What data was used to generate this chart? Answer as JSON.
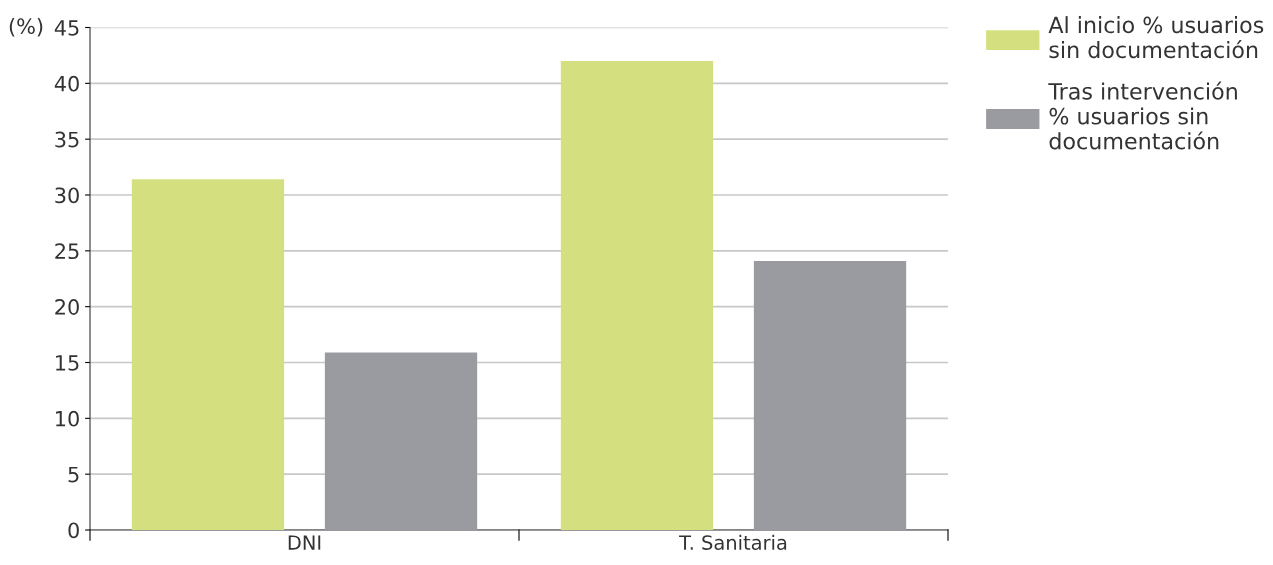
{
  "chart_data": {
    "type": "bar",
    "ylabel": "(%)",
    "categories": [
      "DNI",
      "T. Sanitaria"
    ],
    "series": [
      {
        "name": "Al inicio % usuarios\nsin documentación",
        "color": "#d4e07f",
        "values": [
          31.4,
          42.0
        ]
      },
      {
        "name": "Tras intervención\n% usuarios sin\ndocumentación",
        "color": "#9a9ba0",
        "values": [
          15.9,
          24.1
        ]
      }
    ],
    "ylim": [
      0,
      45
    ],
    "yticks": [
      0,
      5,
      10,
      15,
      20,
      25,
      30,
      35,
      40,
      45
    ],
    "grid": "y",
    "legend": "top right"
  }
}
